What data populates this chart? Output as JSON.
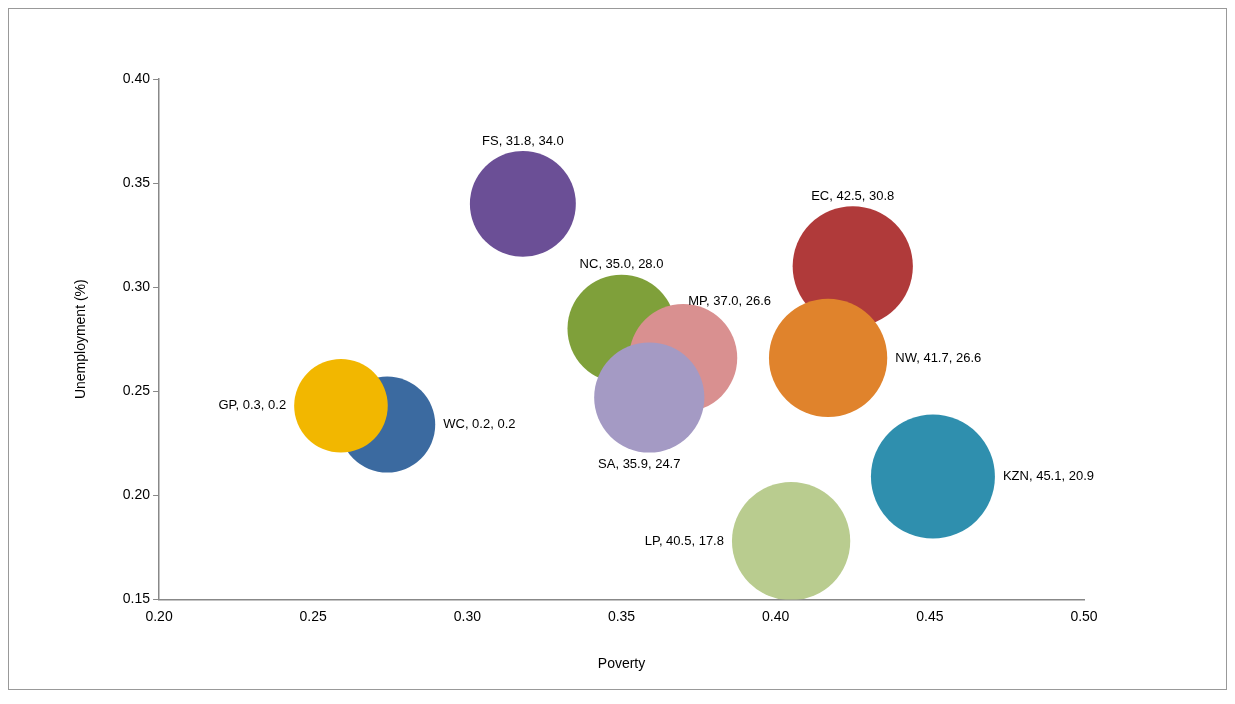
{
  "chart_data": {
    "type": "bubble",
    "xlabel": "Poverty",
    "ylabel": "Unemployment (%)",
    "x": [
      0.274,
      0.259,
      0.318,
      0.425,
      0.417,
      0.35,
      0.37,
      0.359,
      0.451,
      0.405
    ],
    "values": [
      0.234,
      0.243,
      0.34,
      0.31,
      0.266,
      0.28,
      0.266,
      0.247,
      0.209,
      0.178
    ],
    "sizes": [
      0.6,
      0.57,
      0.73,
      0.94,
      0.91,
      0.76,
      0.76,
      0.79,
      1,
      0.91
    ],
    "colors": [
      "#3b6aa0",
      "#f2b700",
      "#6b4f96",
      "#b03a3a",
      "#e0832c",
      "#7fa03a",
      "#d99090",
      "#a49ac4",
      "#2f8fae",
      "#b9cc8f"
    ],
    "value_labels": [
      "WC, 0.2, 0.2",
      "GP, 0.3, 0.2",
      "FS, 31.8, 34.0",
      "EC, 42.5, 30.8",
      "NW, 41.7, 26.6",
      "NC, 35.0, 28.0",
      "MP, 37.0, 26.6",
      "SA, 35.9, 24.7",
      "KZN, 45.1, 20.9",
      "LP, 40.5, 17.8"
    ],
    "xlim": [
      0.2,
      0.5
    ],
    "xticks": [
      {
        "value": 0.2,
        "label": "0.20"
      },
      0.25,
      {
        "value": 0.3,
        "label": "0.30"
      },
      0.35,
      {
        "value": 0.4,
        "label": "0.40"
      },
      0.45,
      {
        "value": 0.5,
        "label": "0.50"
      }
    ],
    "ylim": [
      0.15,
      0.4
    ],
    "yticks": [
      0.15,
      {
        "value": 0.2,
        "label": "0.20"
      },
      0.25,
      {
        "value": 0.3,
        "label": "0.30"
      },
      0.35,
      {
        "value": 0.4,
        "label": "0.40"
      }
    ],
    "grid": false,
    "legend": false
  }
}
